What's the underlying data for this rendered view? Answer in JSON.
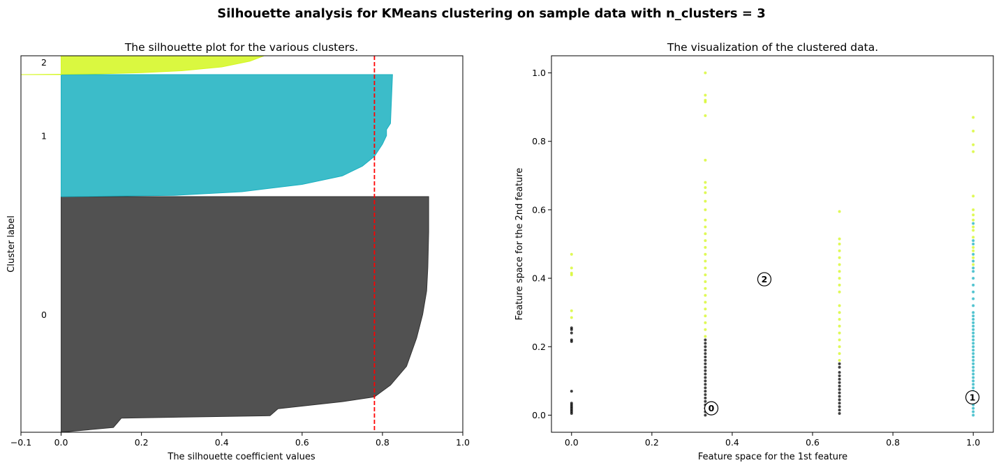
{
  "suptitle": "Silhouette analysis for KMeans clustering on sample data with n_clusters = 3",
  "chart_data": [
    {
      "type": "area",
      "title": "The silhouette plot for the various clusters.",
      "xlabel": "The silhouette coefficient values",
      "ylabel": "Cluster label",
      "xlim": [
        -0.1,
        1.0
      ],
      "xticks": [
        -0.1,
        0.0,
        0.2,
        0.4,
        0.6,
        0.8,
        1.0
      ],
      "xtick_labels": [
        "−0.1",
        "0.0",
        "0.2",
        "0.4",
        "0.6",
        "0.8",
        "1.0"
      ],
      "average_silhouette_score": 0.78,
      "average_line_color": "#ff0000",
      "clusters": [
        {
          "label": "0",
          "color": "#333333",
          "profile": [
            [
              0.0,
              0.0
            ],
            [
              0.13,
              0.02
            ],
            [
              0.14,
              0.04
            ],
            [
              0.15,
              0.06
            ],
            [
              0.52,
              0.07
            ],
            [
              0.54,
              0.1
            ],
            [
              0.7,
              0.13
            ],
            [
              0.78,
              0.15
            ],
            [
              0.82,
              0.2
            ],
            [
              0.86,
              0.28
            ],
            [
              0.885,
              0.4
            ],
            [
              0.9,
              0.5
            ],
            [
              0.91,
              0.6
            ],
            [
              0.913,
              0.7
            ],
            [
              0.915,
              0.85
            ],
            [
              0.915,
              1.0
            ]
          ]
        },
        {
          "label": "1",
          "color": "#1ab0c0",
          "profile": [
            [
              0.0,
              0.0
            ],
            [
              0.28,
              0.01
            ],
            [
              0.45,
              0.04
            ],
            [
              0.6,
              0.1
            ],
            [
              0.7,
              0.17
            ],
            [
              0.75,
              0.25
            ],
            [
              0.78,
              0.33
            ],
            [
              0.8,
              0.43
            ],
            [
              0.81,
              0.5
            ],
            [
              0.81,
              0.55
            ],
            [
              0.82,
              0.6
            ],
            [
              0.825,
              1.0
            ]
          ]
        },
        {
          "label": "2",
          "color": "#d4f71f",
          "profile": [
            [
              -0.1,
              0.0
            ],
            [
              0.1,
              0.02
            ],
            [
              0.2,
              0.05
            ],
            [
              0.3,
              0.1
            ],
            [
              0.4,
              0.2
            ],
            [
              0.47,
              0.35
            ],
            [
              0.52,
              0.55
            ],
            [
              0.55,
              0.8
            ],
            [
              0.56,
              1.0
            ]
          ]
        }
      ]
    },
    {
      "type": "scatter",
      "title": "The visualization of the clustered data.",
      "xlabel": "Feature space for the 1st feature",
      "ylabel": "Feature space for the 2nd feature",
      "xlim": [
        -0.05,
        1.05
      ],
      "ylim": [
        -0.05,
        1.05
      ],
      "xticks": [
        0.0,
        0.2,
        0.4,
        0.6,
        0.8,
        1.0
      ],
      "yticks": [
        0.0,
        0.2,
        0.4,
        0.6,
        0.8,
        1.0
      ],
      "tick_labels": [
        "0.0",
        "0.2",
        "0.4",
        "0.6",
        "0.8",
        "1.0"
      ],
      "series": [
        {
          "cluster": "0",
          "color": "#000000",
          "points": [
            [
              0.0,
              0.005
            ],
            [
              0.0,
              0.01
            ],
            [
              0.0,
              0.015
            ],
            [
              0.0,
              0.02
            ],
            [
              0.0,
              0.025
            ],
            [
              0.0,
              0.03
            ],
            [
              0.0,
              0.035
            ],
            [
              0.0,
              0.07
            ],
            [
              0.0,
              0.215
            ],
            [
              0.0,
              0.22
            ],
            [
              0.0,
              0.24
            ],
            [
              0.0,
              0.25
            ],
            [
              0.0,
              0.255
            ],
            [
              0.333,
              0.0
            ],
            [
              0.333,
              0.01
            ],
            [
              0.333,
              0.02
            ],
            [
              0.333,
              0.03
            ],
            [
              0.333,
              0.04
            ],
            [
              0.333,
              0.05
            ],
            [
              0.333,
              0.06
            ],
            [
              0.333,
              0.07
            ],
            [
              0.333,
              0.08
            ],
            [
              0.333,
              0.09
            ],
            [
              0.333,
              0.1
            ],
            [
              0.333,
              0.11
            ],
            [
              0.333,
              0.12
            ],
            [
              0.333,
              0.13
            ],
            [
              0.333,
              0.14
            ],
            [
              0.333,
              0.15
            ],
            [
              0.333,
              0.16
            ],
            [
              0.333,
              0.17
            ],
            [
              0.333,
              0.18
            ],
            [
              0.333,
              0.19
            ],
            [
              0.333,
              0.2
            ],
            [
              0.333,
              0.21
            ],
            [
              0.333,
              0.22
            ],
            [
              0.667,
              0.005
            ],
            [
              0.667,
              0.015
            ],
            [
              0.667,
              0.025
            ],
            [
              0.667,
              0.035
            ],
            [
              0.667,
              0.045
            ],
            [
              0.667,
              0.055
            ],
            [
              0.667,
              0.065
            ],
            [
              0.667,
              0.075
            ],
            [
              0.667,
              0.085
            ],
            [
              0.667,
              0.095
            ],
            [
              0.667,
              0.105
            ],
            [
              0.667,
              0.115
            ],
            [
              0.667,
              0.125
            ],
            [
              0.667,
              0.14
            ],
            [
              0.667,
              0.15
            ]
          ]
        },
        {
          "cluster": "1",
          "color": "#1ab0c0",
          "points": [
            [
              1.0,
              0.0
            ],
            [
              1.0,
              0.01
            ],
            [
              1.0,
              0.02
            ],
            [
              1.0,
              0.03
            ],
            [
              1.0,
              0.04
            ],
            [
              1.0,
              0.05
            ],
            [
              1.0,
              0.06
            ],
            [
              1.0,
              0.07
            ],
            [
              1.0,
              0.08
            ],
            [
              1.0,
              0.09
            ],
            [
              1.0,
              0.1
            ],
            [
              1.0,
              0.11
            ],
            [
              1.0,
              0.12
            ],
            [
              1.0,
              0.13
            ],
            [
              1.0,
              0.14
            ],
            [
              1.0,
              0.15
            ],
            [
              1.0,
              0.16
            ],
            [
              1.0,
              0.17
            ],
            [
              1.0,
              0.18
            ],
            [
              1.0,
              0.19
            ],
            [
              1.0,
              0.2
            ],
            [
              1.0,
              0.21
            ],
            [
              1.0,
              0.22
            ],
            [
              1.0,
              0.23
            ],
            [
              1.0,
              0.24
            ],
            [
              1.0,
              0.25
            ],
            [
              1.0,
              0.26
            ],
            [
              1.0,
              0.27
            ],
            [
              1.0,
              0.28
            ],
            [
              1.0,
              0.29
            ],
            [
              1.0,
              0.3
            ],
            [
              1.0,
              0.32
            ],
            [
              1.0,
              0.34
            ],
            [
              1.0,
              0.36
            ],
            [
              1.0,
              0.38
            ],
            [
              1.0,
              0.4
            ],
            [
              1.0,
              0.42
            ],
            [
              1.0,
              0.43
            ],
            [
              1.0,
              0.45
            ],
            [
              1.0,
              0.47
            ],
            [
              1.0,
              0.5
            ],
            [
              1.0,
              0.51
            ],
            [
              1.0,
              0.56
            ]
          ]
        },
        {
          "cluster": "2",
          "color": "#d4f71f",
          "points": [
            [
              0.0,
              0.285
            ],
            [
              0.0,
              0.305
            ],
            [
              0.0,
              0.41
            ],
            [
              0.0,
              0.415
            ],
            [
              0.0,
              0.43
            ],
            [
              0.0,
              0.47
            ],
            [
              0.333,
              0.23
            ],
            [
              0.333,
              0.25
            ],
            [
              0.333,
              0.27
            ],
            [
              0.333,
              0.29
            ],
            [
              0.333,
              0.31
            ],
            [
              0.333,
              0.33
            ],
            [
              0.333,
              0.35
            ],
            [
              0.333,
              0.37
            ],
            [
              0.333,
              0.39
            ],
            [
              0.333,
              0.41
            ],
            [
              0.333,
              0.43
            ],
            [
              0.333,
              0.45
            ],
            [
              0.333,
              0.47
            ],
            [
              0.333,
              0.49
            ],
            [
              0.333,
              0.51
            ],
            [
              0.333,
              0.53
            ],
            [
              0.333,
              0.55
            ],
            [
              0.333,
              0.57
            ],
            [
              0.333,
              0.6
            ],
            [
              0.333,
              0.625
            ],
            [
              0.333,
              0.65
            ],
            [
              0.333,
              0.665
            ],
            [
              0.333,
              0.68
            ],
            [
              0.333,
              0.745
            ],
            [
              0.333,
              0.875
            ],
            [
              0.333,
              0.915
            ],
            [
              0.333,
              0.92
            ],
            [
              0.333,
              0.935
            ],
            [
              0.333,
              1.0
            ],
            [
              0.667,
              0.16
            ],
            [
              0.667,
              0.18
            ],
            [
              0.667,
              0.2
            ],
            [
              0.667,
              0.22
            ],
            [
              0.667,
              0.24
            ],
            [
              0.667,
              0.26
            ],
            [
              0.667,
              0.28
            ],
            [
              0.667,
              0.3
            ],
            [
              0.667,
              0.32
            ],
            [
              0.667,
              0.36
            ],
            [
              0.667,
              0.38
            ],
            [
              0.667,
              0.4
            ],
            [
              0.667,
              0.42
            ],
            [
              0.667,
              0.44
            ],
            [
              0.667,
              0.46
            ],
            [
              0.667,
              0.48
            ],
            [
              0.667,
              0.5
            ],
            [
              0.667,
              0.515
            ],
            [
              0.667,
              0.595
            ],
            [
              1.0,
              0.44
            ],
            [
              1.0,
              0.46
            ],
            [
              1.0,
              0.48
            ],
            [
              1.0,
              0.49
            ],
            [
              1.0,
              0.52
            ],
            [
              1.0,
              0.54
            ],
            [
              1.0,
              0.55
            ],
            [
              1.0,
              0.57
            ],
            [
              1.0,
              0.585
            ],
            [
              1.0,
              0.6
            ],
            [
              1.0,
              0.64
            ],
            [
              1.0,
              0.77
            ],
            [
              1.0,
              0.79
            ],
            [
              1.0,
              0.83
            ],
            [
              1.0,
              0.87
            ]
          ]
        }
      ],
      "centers": [
        {
          "label": "0",
          "x": 0.348,
          "y": 0.02
        },
        {
          "label": "1",
          "x": 0.998,
          "y": 0.052
        },
        {
          "label": "2",
          "x": 0.48,
          "y": 0.397
        }
      ]
    }
  ]
}
